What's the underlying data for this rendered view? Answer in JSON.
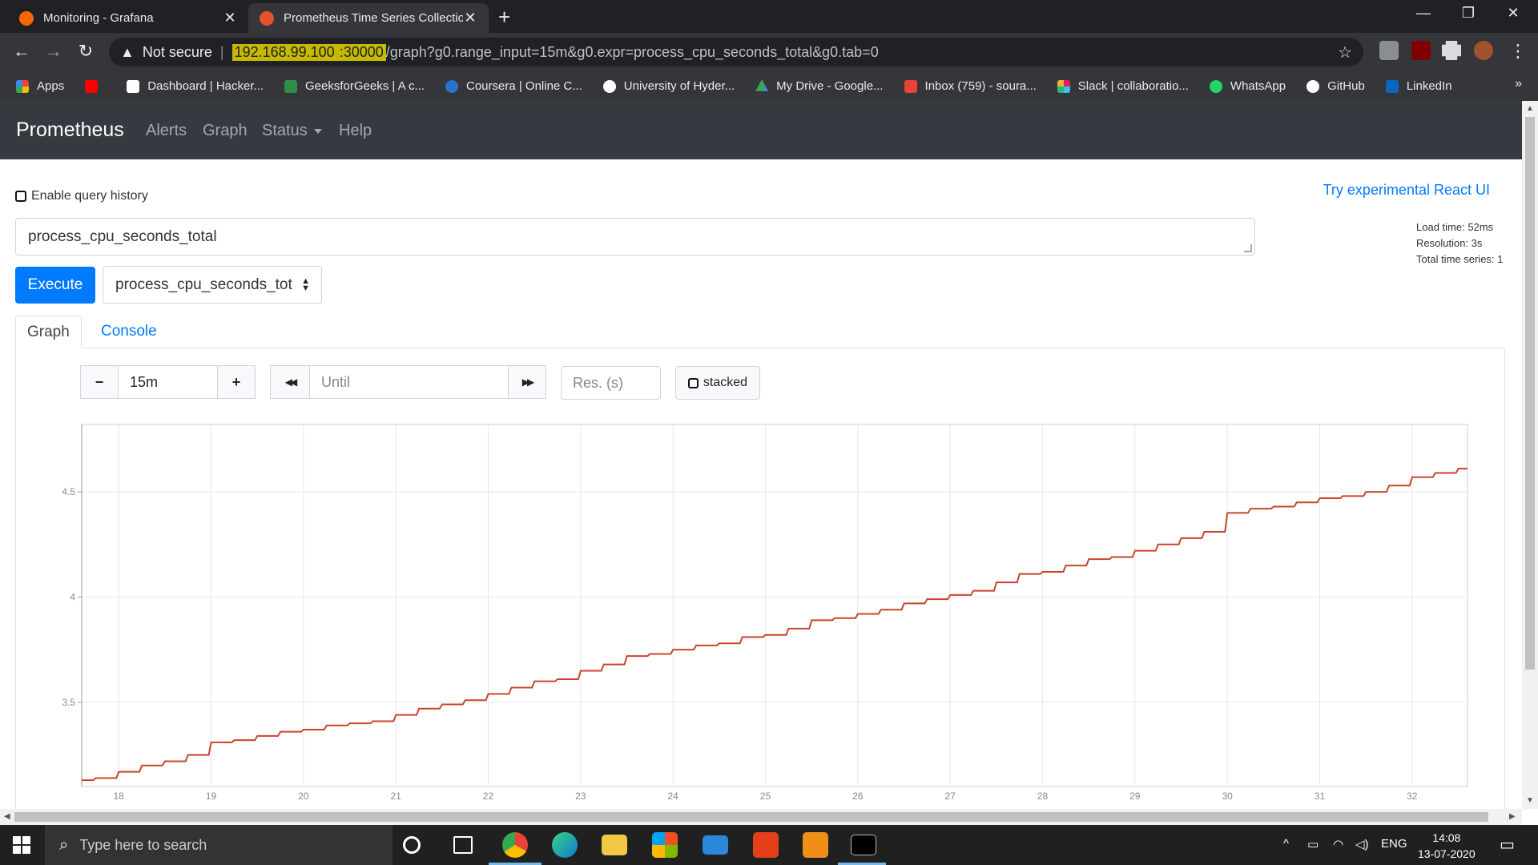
{
  "browser": {
    "tabs": [
      {
        "title": "Monitoring - Grafana",
        "favicon": "grafana-icon",
        "color": "#f46800",
        "active": false
      },
      {
        "title": "Prometheus Time Series Collectio",
        "favicon": "prometheus-icon",
        "color": "#e6522c",
        "active": true
      }
    ],
    "address": {
      "security": "Not secure",
      "host": "192.168.99.100",
      "port": ":30000",
      "path": "/graph?g0.range_input=15m&g0.expr=process_cpu_seconds_total&g0.tab=0"
    },
    "bookmarks": [
      {
        "label": "Apps",
        "icon": "apps-grid-icon",
        "color": "#ea4335"
      },
      {
        "label": "",
        "icon": "youtube-icon",
        "color": "#ff0000"
      },
      {
        "label": "Dashboard | Hacker...",
        "icon": "hackerrank-icon",
        "color": "#111111"
      },
      {
        "label": "GeeksforGeeks | A c...",
        "icon": "geeksforgeeks-icon",
        "color": "#2f8d46"
      },
      {
        "label": "Coursera | Online C...",
        "icon": "coursera-icon",
        "color": "#2a73cc"
      },
      {
        "label": "University of Hyder...",
        "icon": "globe-icon",
        "color": "#ffffff"
      },
      {
        "label": "My Drive - Google...",
        "icon": "google-drive-icon",
        "color": "#fbbc04"
      },
      {
        "label": "Inbox (759) - soura...",
        "icon": "gmail-icon",
        "color": "#ea4335"
      },
      {
        "label": "Slack | collaboratio...",
        "icon": "slack-icon",
        "color": "#e01e5a"
      },
      {
        "label": "WhatsApp",
        "icon": "whatsapp-icon",
        "color": "#25d366"
      },
      {
        "label": "GitHub",
        "icon": "github-icon",
        "color": "#ffffff"
      },
      {
        "label": "LinkedIn",
        "icon": "linkedin-icon",
        "color": "#0a66c2"
      }
    ],
    "more": "»"
  },
  "nav": {
    "brand": "Prometheus",
    "links": [
      "Alerts",
      "Graph",
      "Status",
      "Help"
    ]
  },
  "query": {
    "history_label": "Enable query history",
    "react_link": "Try experimental React UI",
    "expression": "process_cpu_seconds_total",
    "execute": "Execute",
    "metric_select": "process_cpu_seconds_tot",
    "stats": {
      "load_time": "Load time: 52ms",
      "resolution": "Resolution: 3s",
      "total_series": "Total time series: 1"
    }
  },
  "panel_tabs": {
    "graph": "Graph",
    "console": "Console"
  },
  "graph_controls": {
    "minus": "−",
    "range": "15m",
    "plus": "+",
    "back": "◀◀",
    "until_placeholder": "Until",
    "forward": "▶▶",
    "res_placeholder": "Res. (s)",
    "stacked": "stacked"
  },
  "chart_data": {
    "type": "line",
    "title": "",
    "xlabel": "",
    "ylabel": "",
    "ylim": [
      3.1,
      4.82
    ],
    "xlim": [
      17.6,
      32.6
    ],
    "yticks": [
      3.5,
      4,
      4.5
    ],
    "ytick_labels": [
      "3.5",
      "4",
      "4.5"
    ],
    "xticks": [
      18,
      19,
      20,
      21,
      22,
      23,
      24,
      25,
      26,
      27,
      28,
      29,
      30,
      31,
      32
    ],
    "xtick_labels": [
      "18",
      "19",
      "20",
      "21",
      "22",
      "23",
      "24",
      "25",
      "26",
      "27",
      "28",
      "29",
      "30",
      "31",
      "32"
    ],
    "grid": true,
    "legend": "none",
    "series": [
      {
        "color": "#c9442c",
        "x": [
          17.6,
          17.85,
          18.1,
          18.35,
          18.6,
          18.85,
          19.1,
          19.35,
          19.6,
          19.85,
          20.1,
          20.35,
          20.6,
          20.85,
          21.1,
          21.35,
          21.6,
          21.85,
          22.1,
          22.35,
          22.6,
          22.85,
          23.1,
          23.35,
          23.6,
          23.85,
          24.1,
          24.35,
          24.6,
          24.85,
          25.1,
          25.35,
          25.6,
          25.85,
          26.1,
          26.35,
          26.6,
          26.85,
          27.1,
          27.35,
          27.6,
          27.85,
          28.1,
          28.35,
          28.6,
          28.85,
          29.1,
          29.35,
          29.6,
          29.85,
          30.1,
          30.35,
          30.6,
          30.85,
          31.1,
          31.35,
          31.6,
          31.85,
          32.1,
          32.35,
          32.6
        ],
        "y": [
          3.13,
          3.14,
          3.17,
          3.2,
          3.22,
          3.25,
          3.31,
          3.32,
          3.34,
          3.36,
          3.37,
          3.39,
          3.4,
          3.41,
          3.44,
          3.47,
          3.49,
          3.51,
          3.54,
          3.57,
          3.6,
          3.61,
          3.65,
          3.68,
          3.72,
          3.73,
          3.75,
          3.77,
          3.78,
          3.81,
          3.82,
          3.85,
          3.89,
          3.9,
          3.92,
          3.94,
          3.97,
          3.99,
          4.01,
          4.03,
          4.07,
          4.11,
          4.12,
          4.15,
          4.18,
          4.19,
          4.22,
          4.25,
          4.28,
          4.31,
          4.4,
          4.42,
          4.43,
          4.45,
          4.47,
          4.48,
          4.5,
          4.53,
          4.57,
          4.59,
          4.61
        ]
      }
    ]
  },
  "taskbar": {
    "search_placeholder": "Type here to search",
    "language": "ENG",
    "time": "14:08",
    "date": "13-07-2020",
    "apps": [
      {
        "name": "cortana-icon",
        "color": "#202020"
      },
      {
        "name": "task-view-icon",
        "color": "#202020"
      },
      {
        "name": "chrome-icon",
        "color": "#4285f4"
      },
      {
        "name": "edge-icon",
        "color": "#0f7bd4"
      },
      {
        "name": "file-explorer-icon",
        "color": "#f2c744"
      },
      {
        "name": "store-icon",
        "color": "#1f7ad6"
      },
      {
        "name": "mail-icon",
        "color": "#2b88d8"
      },
      {
        "name": "office-icon",
        "color": "#e43f19"
      },
      {
        "name": "sublime-text-icon",
        "color": "#f08e1a"
      },
      {
        "name": "terminal-icon",
        "color": "#000000"
      }
    ]
  }
}
